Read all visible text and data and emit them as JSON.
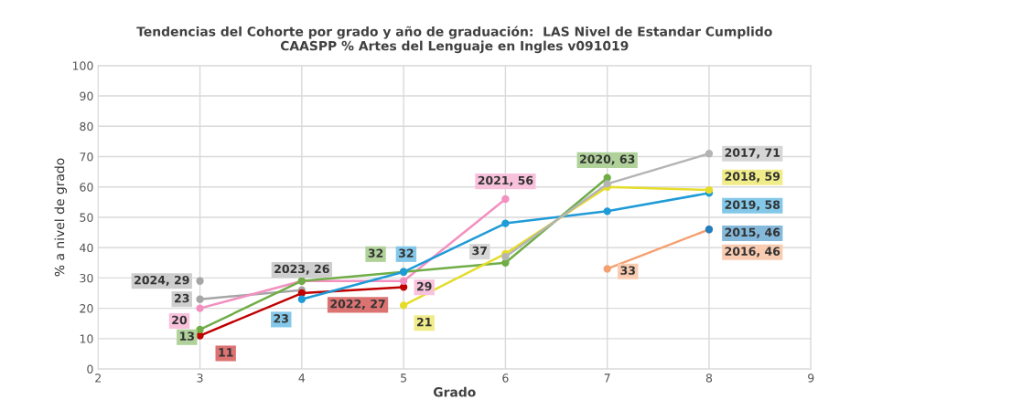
{
  "chart_data": {
    "type": "line",
    "title": "Tendencias del Cohorte por grado y año de graduación:  LAS Nivel de Estandar Cumplido\nCAASPP % Artes del Lenguaje en Ingles v091019",
    "xlabel": "Grado",
    "ylabel": "% a nivel de grado",
    "xlim": [
      2,
      9
    ],
    "xticks": [
      2,
      3,
      4,
      5,
      6,
      7,
      8,
      9
    ],
    "ylim": [
      0,
      100
    ],
    "yticks": [
      0,
      10,
      20,
      30,
      40,
      50,
      60,
      70,
      80,
      90,
      100
    ],
    "grid": true,
    "legend": false,
    "marker": "circle",
    "line_style": "solid",
    "series": [
      {
        "color": "#a6a6a6",
        "x": [
          3
        ],
        "values": [
          29
        ],
        "value_labels": [
          "2024, 29"
        ]
      },
      {
        "color": "#a6a6a6",
        "x": [
          3,
          4
        ],
        "values": [
          23,
          26
        ],
        "value_labels": [
          "23",
          "2023, 26"
        ]
      },
      {
        "color": "#c00000",
        "x": [
          3,
          4,
          5
        ],
        "values": [
          11,
          25,
          27
        ],
        "value_labels": [
          "11",
          null,
          "2022, 27"
        ]
      },
      {
        "color": "#f290c0",
        "x": [
          3,
          4,
          5,
          6
        ],
        "values": [
          20,
          29,
          29,
          56
        ],
        "value_labels": [
          "20",
          null,
          "29",
          "2021, 56"
        ]
      },
      {
        "color": "#70ad47",
        "x": [
          3,
          4,
          5,
          6,
          7
        ],
        "values": [
          13,
          29,
          32,
          35,
          63
        ],
        "value_labels": [
          "13",
          null,
          "32",
          null,
          "2020, 63"
        ]
      },
      {
        "color": "#1f9bd7",
        "x": [
          4,
          5,
          6,
          7,
          8
        ],
        "values": [
          23,
          32,
          48,
          52,
          58
        ],
        "value_labels": [
          "23",
          "32",
          null,
          null,
          "2019, 58"
        ]
      },
      {
        "color": "#e6dc2a",
        "x": [
          5,
          6,
          7,
          8
        ],
        "values": [
          21,
          38,
          60,
          59
        ],
        "value_labels": [
          "21",
          null,
          null,
          "2018, 59"
        ]
      },
      {
        "color": "#b4b4b4",
        "x": [
          6,
          7,
          8
        ],
        "values": [
          37,
          61,
          71
        ],
        "value_labels": [
          "37",
          null,
          "2017, 71"
        ]
      },
      {
        "color": "#f4a070",
        "x": [
          7,
          8
        ],
        "values": [
          33,
          46
        ],
        "value_labels": [
          "33",
          "2016, 46"
        ]
      },
      {
        "color": "#1f7fc0",
        "x": [
          8
        ],
        "values": [
          46
        ],
        "value_labels": [
          "2015, 46"
        ]
      }
    ]
  }
}
